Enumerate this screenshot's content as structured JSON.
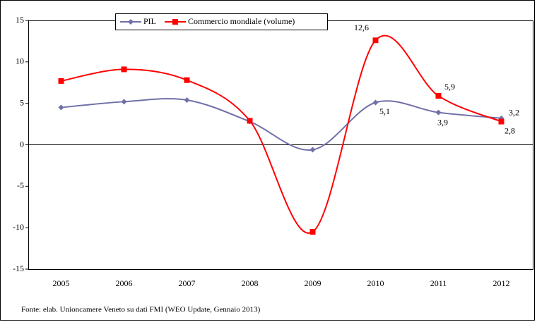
{
  "chart_data": {
    "type": "line",
    "categories": [
      "2005",
      "2006",
      "2007",
      "2008",
      "2009",
      "2010",
      "2011",
      "2012"
    ],
    "series": [
      {
        "name": "PIL",
        "color": "#7070a8",
        "marker": "diamond",
        "values": [
          4.5,
          5.2,
          5.4,
          2.8,
          -0.6,
          5.1,
          3.9,
          3.2
        ],
        "value_labels": [
          null,
          null,
          null,
          null,
          null,
          "5,1",
          "3,9",
          "3,2"
        ]
      },
      {
        "name": "Commercio mondiale (volume)",
        "color": "#ff0000",
        "marker": "square",
        "values": [
          7.7,
          9.1,
          7.8,
          2.9,
          -10.5,
          12.6,
          5.9,
          2.8
        ],
        "value_labels": [
          null,
          null,
          null,
          null,
          null,
          "12,6",
          "5,9",
          "2,8"
        ]
      }
    ],
    "ylim": [
      -15,
      15
    ],
    "yticks": [
      -15,
      -10,
      -5,
      0,
      5,
      10,
      15
    ],
    "smooth": true,
    "note": "Fonte: elab. Unioncamere Veneto su dati FMI (WEO Update, Gennaio 2013)"
  }
}
